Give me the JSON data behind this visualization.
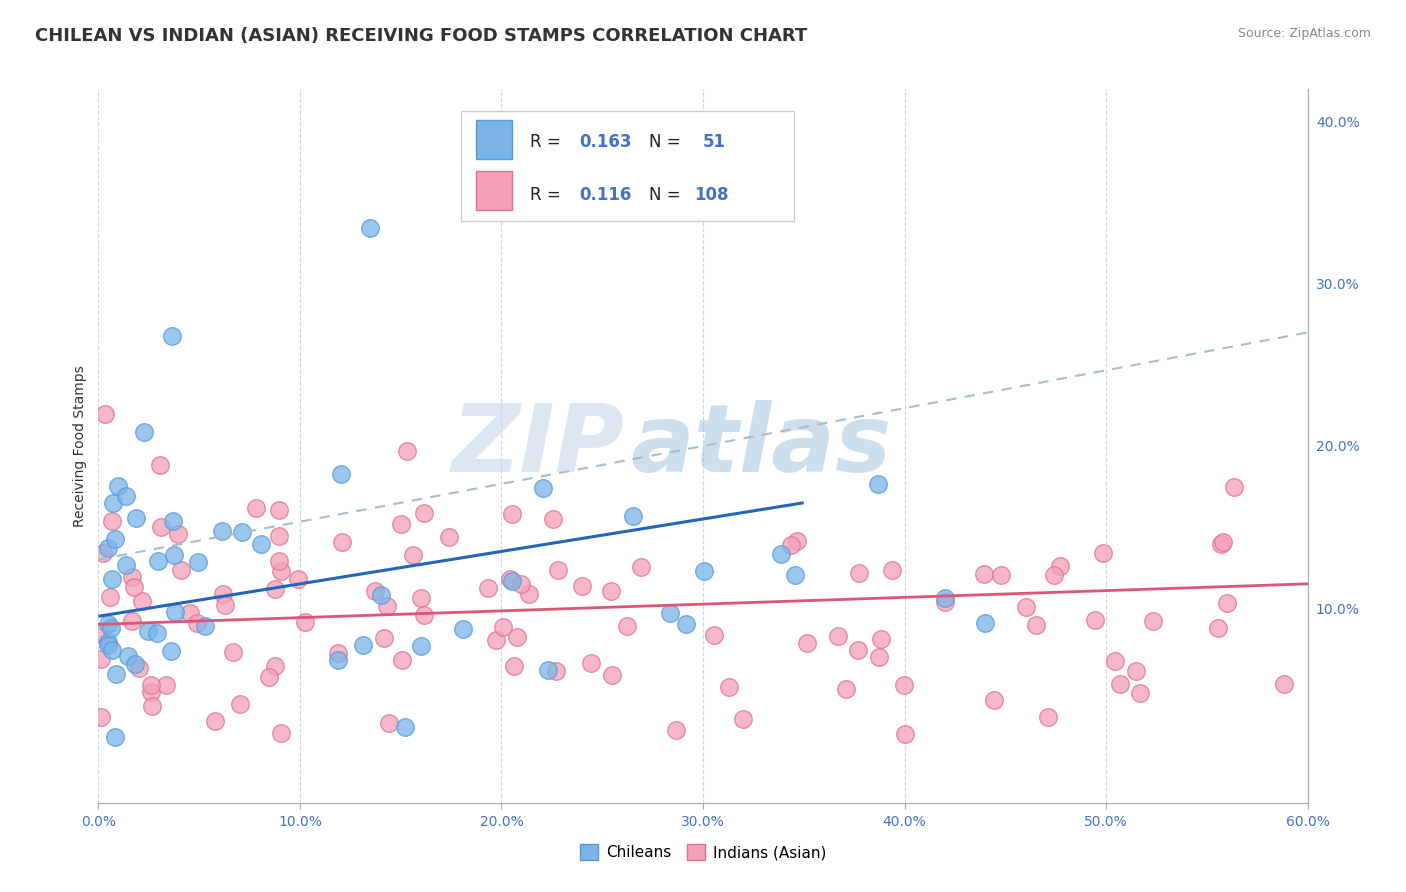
{
  "title": "CHILEAN VS INDIAN (ASIAN) RECEIVING FOOD STAMPS CORRELATION CHART",
  "source_text": "Source: ZipAtlas.com",
  "ylabel": "Receiving Food Stamps",
  "xlim": [
    0.0,
    0.6
  ],
  "ylim": [
    -0.02,
    0.42
  ],
  "chilean_color": "#7ab4e8",
  "chilean_edge_color": "#5599d8",
  "indian_color": "#f4a0b8",
  "indian_edge_color": "#e07090",
  "chilean_line_color": "#2266bb",
  "indian_line_color": "#dd5577",
  "dashed_line_color": "#aabbcc",
  "legend_R_chilean": "0.163",
  "legend_N_chilean": "51",
  "legend_R_indian": "0.116",
  "legend_N_indian": "108",
  "watermark_zip": "ZIP",
  "watermark_atlas": "atlas",
  "background_color": "#ffffff",
  "grid_color": "#c8d8e8",
  "title_color": "#333333",
  "source_color": "#888888",
  "tick_label_color": "#4472c4",
  "axis_label_color": "#333333"
}
